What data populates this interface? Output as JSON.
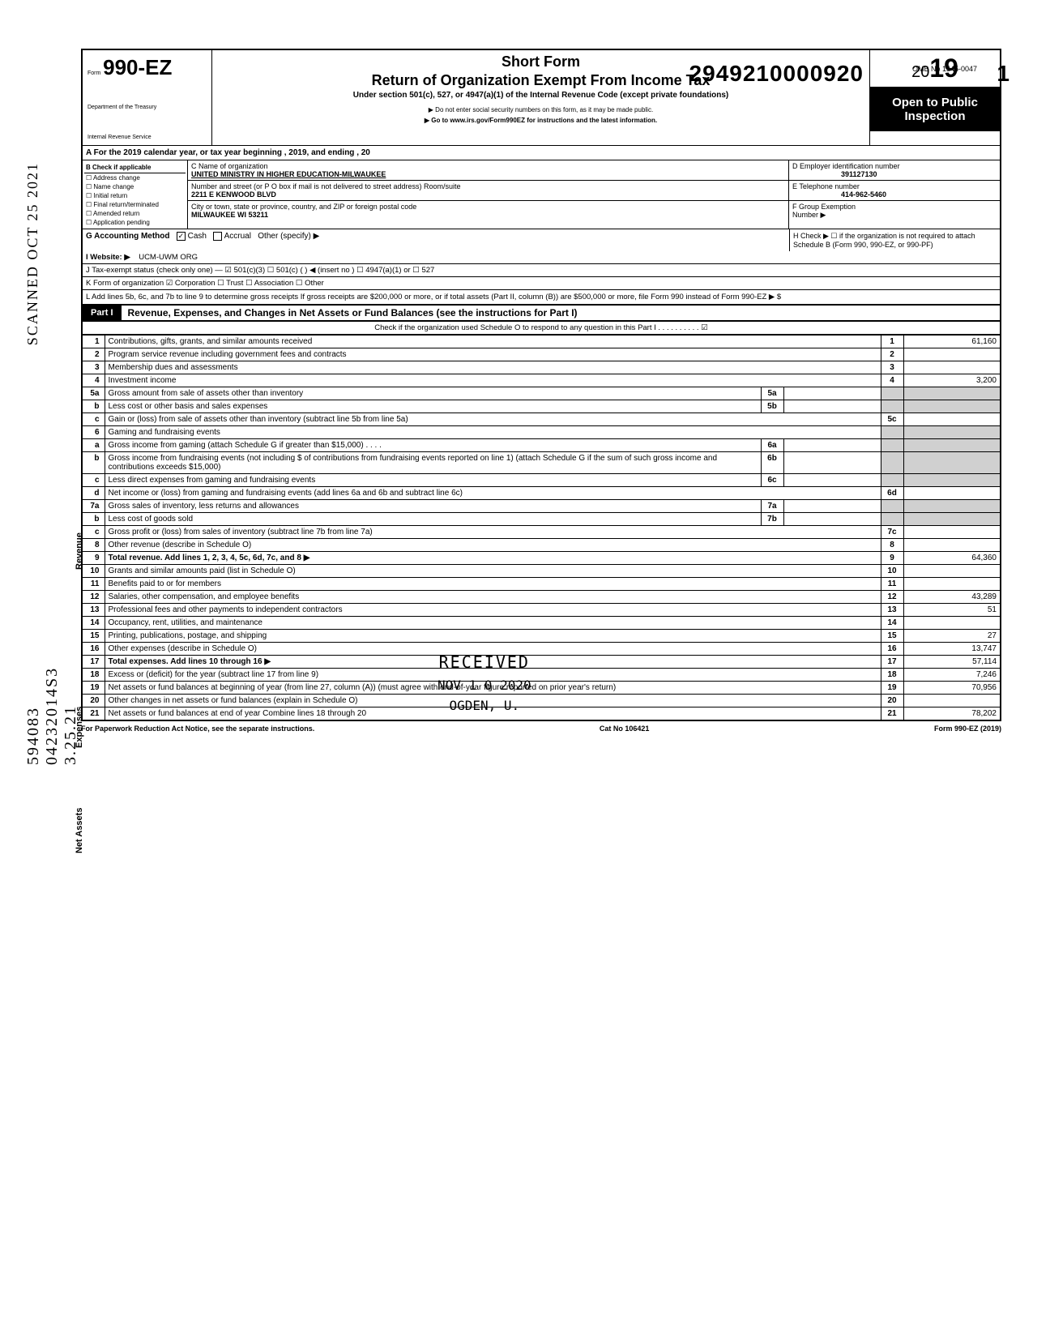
{
  "dln": "2949210000920",
  "omb": "OMB No 1545-0047",
  "pagenum": "1",
  "form": {
    "number": "990-EZ",
    "prefix": "Form",
    "dept1": "Department of the Treasury",
    "dept2": "Internal Revenue Service",
    "title1": "Short Form",
    "title2": "Return of Organization Exempt From Income Tax",
    "title3": "Under section 501(c), 527, or 4947(a)(1) of the Internal Revenue Code (except private foundations)",
    "warn": "▶ Do not enter social security numbers on this form, as it may be made public.",
    "goto": "▶ Go to www.irs.gov/Form990EZ for instructions and the latest information.",
    "year": "2019",
    "open1": "Open to Public",
    "open2": "Inspection"
  },
  "rowA": "A For the 2019 calendar year, or tax year beginning                                                              , 2019, and ending                                                , 20",
  "colB": {
    "hdr": "B Check if applicable",
    "items": [
      "Address change",
      "Name change",
      "Initial return",
      "Final return/terminated",
      "Amended return",
      "Application pending"
    ]
  },
  "colC": {
    "nameLbl": "C Name of organization",
    "name": "UNITED MINISTRY IN HIGHER EDUCATION-MILWAUKEE",
    "addrLbl": "Number and street (or P O box if mail is not delivered to street address)          Room/suite",
    "addr": "2211 E KENWOOD BLVD",
    "cityLbl": "City or town, state or province, country, and ZIP or foreign postal code",
    "city": "MILWAUKEE WI 53211"
  },
  "colD": {
    "einLbl": "D Employer identification number",
    "ein": "391127130",
    "telLbl": "E Telephone number",
    "tel": "414-962-5460",
    "grpLbl": "F Group Exemption",
    "grpLbl2": "Number ▶"
  },
  "rowG": {
    "lbl": "G Accounting Method",
    "cash": "Cash",
    "accrual": "Accrual",
    "other": "Other (specify) ▶",
    "hLbl": "H Check ▶ ☐ if the organization is not required to attach Schedule B (Form 990, 990-EZ, or 990-PF)"
  },
  "rowI": {
    "lbl": "I Website: ▶",
    "val": "UCM-UWM ORG"
  },
  "rowJ": "J Tax-exempt status (check only one) — ☑ 501(c)(3)   ☐ 501(c) (      ) ◀ (insert no ) ☐ 4947(a)(1) or   ☐ 527",
  "rowK": "K Form of organization   ☑ Corporation   ☐ Trust   ☐ Association   ☐ Other",
  "rowL": "L Add lines 5b, 6c, and 7b to line 9 to determine gross receipts If gross receipts are $200,000 or more, or if total assets (Part II, column (B)) are $500,000 or more, file Form 990 instead of Form 990-EZ                                                                                          ▶  $",
  "part1": {
    "tag": "Part I",
    "title": "Revenue, Expenses, and Changes in Net Assets or Fund Balances (see the instructions for Part I)",
    "check": "Check if the organization used Schedule O to respond to any question in this Part I   .   .   .   .   .   .   .   .   .   .   ☑"
  },
  "sideRevenue": "Revenue",
  "sideExpenses": "Expenses",
  "sideNetAssets": "Net Assets",
  "lines": [
    {
      "n": "1",
      "d": "Contributions, gifts, grants, and similar amounts received",
      "rn": "1",
      "rv": "61,160"
    },
    {
      "n": "2",
      "d": "Program service revenue including government fees and contracts",
      "rn": "2",
      "rv": ""
    },
    {
      "n": "3",
      "d": "Membership dues and assessments",
      "rn": "3",
      "rv": ""
    },
    {
      "n": "4",
      "d": "Investment income",
      "rn": "4",
      "rv": "3,200"
    },
    {
      "n": "5a",
      "d": "Gross amount from sale of assets other than inventory",
      "mn": "5a",
      "mv": "",
      "shade": true
    },
    {
      "n": "b",
      "d": "Less cost or other basis and sales expenses",
      "mn": "5b",
      "mv": "",
      "shade": true
    },
    {
      "n": "c",
      "d": "Gain or (loss) from sale of assets other than inventory (subtract line 5b from line 5a)",
      "rn": "5c",
      "rv": ""
    },
    {
      "n": "6",
      "d": "Gaming and fundraising events",
      "shade": true,
      "noval": true
    },
    {
      "n": "a",
      "d": "Gross income from gaming (attach Schedule G if greater than $15,000)      .     .     .     .",
      "mn": "6a",
      "mv": "",
      "shade": true
    },
    {
      "n": "b",
      "d": "Gross income from fundraising events (not including  $                          of contributions from fundraising events reported on line 1) (attach Schedule G if the sum of such gross income and contributions exceeds $15,000)",
      "mn": "6b",
      "mv": "",
      "shade": true
    },
    {
      "n": "c",
      "d": "Less direct expenses from gaming and fundraising events",
      "mn": "6c",
      "mv": "",
      "shade": true
    },
    {
      "n": "d",
      "d": "Net income or (loss) from gaming and fundraising events (add lines 6a and 6b and subtract line 6c)",
      "rn": "6d",
      "rv": ""
    },
    {
      "n": "7a",
      "d": "Gross sales of inventory, less returns and allowances",
      "mn": "7a",
      "mv": "",
      "shade": true
    },
    {
      "n": "b",
      "d": "Less cost of goods sold",
      "mn": "7b",
      "mv": "",
      "shade": true
    },
    {
      "n": "c",
      "d": "Gross profit or (loss) from sales of inventory (subtract line 7b from line 7a)",
      "rn": "7c",
      "rv": ""
    },
    {
      "n": "8",
      "d": "Other revenue (describe in Schedule O)",
      "rn": "8",
      "rv": ""
    },
    {
      "n": "9",
      "d": "Total revenue. Add lines 1, 2, 3, 4, 5c, 6d, 7c, and 8                                                                                                             ▶",
      "rn": "9",
      "rv": "64,360",
      "bold": true
    },
    {
      "n": "10",
      "d": "Grants and similar amounts paid (list in Schedule O)",
      "rn": "10",
      "rv": ""
    },
    {
      "n": "11",
      "d": "Benefits paid to or for members",
      "rn": "11",
      "rv": ""
    },
    {
      "n": "12",
      "d": "Salaries, other compensation, and employee benefits",
      "rn": "12",
      "rv": "43,289"
    },
    {
      "n": "13",
      "d": "Professional fees and other payments to independent contractors",
      "rn": "13",
      "rv": "51"
    },
    {
      "n": "14",
      "d": "Occupancy, rent, utilities, and maintenance",
      "rn": "14",
      "rv": ""
    },
    {
      "n": "15",
      "d": "Printing, publications, postage, and shipping",
      "rn": "15",
      "rv": "27"
    },
    {
      "n": "16",
      "d": "Other expenses (describe in Schedule O)",
      "rn": "16",
      "rv": "13,747"
    },
    {
      "n": "17",
      "d": "Total expenses. Add lines 10 through 16                                                                                                                           ▶",
      "rn": "17",
      "rv": "57,114",
      "bold": true
    },
    {
      "n": "18",
      "d": "Excess or (deficit) for the year (subtract line 17 from line 9)",
      "rn": "18",
      "rv": "7,246"
    },
    {
      "n": "19",
      "d": "Net assets or fund balances at beginning of year (from line 27, column (A)) (must agree with end-of-year figure reported on prior year's return)",
      "rn": "19",
      "rv": "70,956"
    },
    {
      "n": "20",
      "d": "Other changes in net assets or fund balances (explain in Schedule O)",
      "rn": "20",
      "rv": ""
    },
    {
      "n": "21",
      "d": "Net assets or fund balances at end of year Combine lines 18 through 20",
      "rn": "21",
      "rv": "78,202"
    }
  ],
  "footer": {
    "left": "For Paperwork Reduction Act Notice, see the separate instructions.",
    "mid": "Cat No 106421",
    "right": "Form 990-EZ (2019)"
  },
  "stamp": {
    "received": "RECEIVED",
    "date": "NOV 1 0 2020",
    "loc": "OGDEN, U."
  },
  "sideStamp1": "SCANNED  OCT 25 2021",
  "sideStamp2": "594083 04232014S3 3.25.21"
}
